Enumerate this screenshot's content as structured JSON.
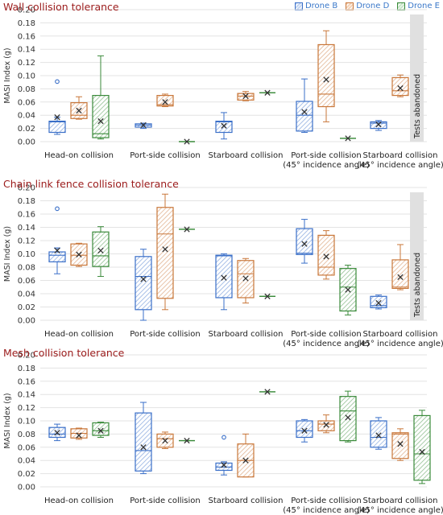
{
  "legend": {
    "drone_b": "Drone B",
    "drone_d": "Drone D",
    "drone_e": "Drone E"
  },
  "colors": {
    "drone_b": "#3a6fc8",
    "drone_d": "#c9773a",
    "drone_e": "#3a8a3a",
    "title": "#9b1b1b",
    "grid": "#e3e3e3",
    "abandoned_bar": "#e0e0e0"
  },
  "chart_data": [
    {
      "type": "box",
      "title": "Wall collision tolerance",
      "ylabel": "MASI Index (g)",
      "ylim": [
        0,
        0.2
      ],
      "yticks": [
        "0.00",
        "0.02",
        "0.04",
        "0.06",
        "0.08",
        "0.10",
        "0.12",
        "0.14",
        "0.16",
        "0.18",
        "0.20"
      ],
      "categories": [
        "Head-on collision",
        "Port-side collision",
        "Starboard collision",
        "Port-side collision\n(45° incidence angle)",
        "Starboard collision\n(45° incidence angle)"
      ],
      "abandoned_label": "Tests abandoned",
      "series": [
        {
          "name": "Drone B",
          "boxes": [
            {
              "min": 0.011,
              "q1": 0.014,
              "median": 0.03,
              "q3": 0.031,
              "max": 0.037,
              "mean": 0.037,
              "outliers": [
                0.091
              ]
            },
            {
              "min": 0.02,
              "q1": 0.022,
              "median": 0.025,
              "q3": 0.027,
              "max": 0.028,
              "mean": 0.025,
              "outliers": []
            },
            {
              "min": 0.004,
              "q1": 0.014,
              "median": 0.03,
              "q3": 0.031,
              "max": 0.044,
              "mean": 0.024,
              "outliers": []
            },
            {
              "min": 0.014,
              "q1": 0.016,
              "median": 0.04,
              "q3": 0.061,
              "max": 0.095,
              "mean": 0.045,
              "outliers": []
            },
            {
              "min": 0.017,
              "q1": 0.02,
              "median": 0.028,
              "q3": 0.03,
              "max": 0.032,
              "mean": 0.026,
              "outliers": []
            }
          ]
        },
        {
          "name": "Drone D",
          "boxes": [
            {
              "min": 0.034,
              "q1": 0.035,
              "median": 0.04,
              "q3": 0.059,
              "max": 0.068,
              "mean": 0.047,
              "outliers": []
            },
            {
              "min": 0.053,
              "q1": 0.054,
              "median": 0.056,
              "q3": 0.07,
              "max": 0.072,
              "mean": 0.06,
              "outliers": []
            },
            {
              "min": 0.062,
              "q1": 0.063,
              "median": 0.069,
              "q3": 0.073,
              "max": 0.076,
              "mean": 0.069,
              "outliers": []
            },
            {
              "min": 0.03,
              "q1": 0.053,
              "median": 0.072,
              "q3": 0.147,
              "max": 0.168,
              "mean": 0.094,
              "outliers": []
            },
            {
              "min": 0.068,
              "q1": 0.07,
              "median": 0.077,
              "q3": 0.097,
              "max": 0.101,
              "mean": 0.081,
              "outliers": []
            }
          ]
        },
        {
          "name": "Drone E",
          "boxes": [
            {
              "min": 0.004,
              "q1": 0.006,
              "median": 0.012,
              "q3": 0.07,
              "max": 0.13,
              "mean": 0.031,
              "outliers": []
            },
            {
              "min": 0.0,
              "q1": 0.0,
              "median": 0.0,
              "q3": 0.0,
              "max": 0.0,
              "mean": 0.0,
              "outliers": []
            },
            {
              "min": 0.074,
              "q1": 0.074,
              "median": 0.074,
              "q3": 0.074,
              "max": 0.074,
              "mean": 0.074,
              "outliers": []
            },
            {
              "min": 0.005,
              "q1": 0.005,
              "median": 0.005,
              "q3": 0.005,
              "max": 0.005,
              "mean": 0.005,
              "outliers": []
            },
            null
          ]
        }
      ]
    },
    {
      "type": "box",
      "title": "Chain link fence collision tolerance",
      "ylabel": "MASI Index (g)",
      "ylim": [
        0,
        0.2
      ],
      "yticks": [
        "0.00",
        "0.02",
        "0.04",
        "0.06",
        "0.08",
        "0.10",
        "0.12",
        "0.14",
        "0.16",
        "0.18",
        "0.20"
      ],
      "categories": [
        "Head-on collision",
        "Port-side collision",
        "Starboard collision",
        "Port-side collision\n(45° incidence angle)",
        "Starboard collision\n(45° incidence angle)"
      ],
      "abandoned_label": "Tests abandoned",
      "series": [
        {
          "name": "Drone B",
          "boxes": [
            {
              "min": 0.07,
              "q1": 0.088,
              "median": 0.098,
              "q3": 0.103,
              "max": 0.109,
              "mean": 0.105,
              "outliers": [
                0.168
              ]
            },
            {
              "min": 0.0,
              "q1": 0.016,
              "median": 0.066,
              "q3": 0.096,
              "max": 0.107,
              "mean": 0.062,
              "outliers": []
            },
            {
              "min": 0.016,
              "q1": 0.034,
              "median": 0.097,
              "q3": 0.098,
              "max": 0.1,
              "mean": 0.064,
              "outliers": []
            },
            {
              "min": 0.086,
              "q1": 0.099,
              "median": 0.101,
              "q3": 0.138,
              "max": 0.152,
              "mean": 0.115,
              "outliers": []
            },
            {
              "min": 0.017,
              "q1": 0.019,
              "median": 0.022,
              "q3": 0.036,
              "max": 0.038,
              "mean": 0.026,
              "outliers": []
            }
          ]
        },
        {
          "name": "Drone D",
          "boxes": [
            {
              "min": 0.081,
              "q1": 0.083,
              "median": 0.098,
              "q3": 0.115,
              "max": 0.116,
              "mean": 0.099,
              "outliers": []
            },
            {
              "min": 0.016,
              "q1": 0.033,
              "median": 0.13,
              "q3": 0.17,
              "max": 0.19,
              "mean": 0.107,
              "outliers": []
            },
            {
              "min": 0.026,
              "q1": 0.034,
              "median": 0.07,
              "q3": 0.09,
              "max": 0.093,
              "mean": 0.063,
              "outliers": []
            },
            {
              "min": 0.062,
              "q1": 0.068,
              "median": 0.08,
              "q3": 0.128,
              "max": 0.135,
              "mean": 0.096,
              "outliers": []
            },
            {
              "min": 0.046,
              "q1": 0.048,
              "median": 0.05,
              "q3": 0.091,
              "max": 0.114,
              "mean": 0.065,
              "outliers": []
            }
          ]
        },
        {
          "name": "Drone E",
          "boxes": [
            {
              "min": 0.066,
              "q1": 0.081,
              "median": 0.097,
              "q3": 0.133,
              "max": 0.141,
              "mean": 0.105,
              "outliers": []
            },
            {
              "min": 0.137,
              "q1": 0.137,
              "median": 0.137,
              "q3": 0.137,
              "max": 0.137,
              "mean": 0.137,
              "outliers": []
            },
            {
              "min": 0.036,
              "q1": 0.036,
              "median": 0.036,
              "q3": 0.036,
              "max": 0.036,
              "mean": 0.036,
              "outliers": []
            },
            {
              "min": 0.008,
              "q1": 0.014,
              "median": 0.05,
              "q3": 0.078,
              "max": 0.083,
              "mean": 0.046,
              "outliers": []
            },
            null
          ]
        }
      ]
    },
    {
      "type": "box",
      "title": "Mesh collision tolerance",
      "ylabel": "MASI Index (g)",
      "ylim": [
        0,
        0.2
      ],
      "yticks": [
        "0.00",
        "0.02",
        "0.04",
        "0.06",
        "0.08",
        "0.10",
        "0.12",
        "0.14",
        "0.16",
        "0.18",
        "0.20"
      ],
      "categories": [
        "Head-on collision",
        "Port-side collision",
        "Starboard collision",
        "Port-side collision\n(45° incidence angle)",
        "Starboard collision\n(45° incidence angle)"
      ],
      "abandoned_label": "",
      "series": [
        {
          "name": "Drone B",
          "boxes": [
            {
              "min": 0.07,
              "q1": 0.075,
              "median": 0.08,
              "q3": 0.09,
              "max": 0.095,
              "mean": 0.082,
              "outliers": []
            },
            {
              "min": 0.02,
              "q1": 0.024,
              "median": 0.055,
              "q3": 0.112,
              "max": 0.128,
              "mean": 0.06,
              "outliers": []
            },
            {
              "min": 0.018,
              "q1": 0.025,
              "median": 0.03,
              "q3": 0.036,
              "max": 0.038,
              "mean": 0.033,
              "outliers": [
                0.075
              ]
            },
            {
              "min": 0.068,
              "q1": 0.075,
              "median": 0.085,
              "q3": 0.1,
              "max": 0.102,
              "mean": 0.085,
              "outliers": []
            },
            {
              "min": 0.057,
              "q1": 0.06,
              "median": 0.075,
              "q3": 0.1,
              "max": 0.105,
              "mean": 0.078,
              "outliers": []
            }
          ]
        },
        {
          "name": "Drone D",
          "boxes": [
            {
              "min": 0.072,
              "q1": 0.074,
              "median": 0.081,
              "q3": 0.088,
              "max": 0.089,
              "mean": 0.078,
              "outliers": []
            },
            {
              "min": 0.058,
              "q1": 0.06,
              "median": 0.073,
              "q3": 0.08,
              "max": 0.083,
              "mean": 0.07,
              "outliers": []
            },
            {
              "min": 0.015,
              "q1": 0.015,
              "median": 0.04,
              "q3": 0.065,
              "max": 0.08,
              "mean": 0.04,
              "outliers": []
            },
            {
              "min": 0.082,
              "q1": 0.085,
              "median": 0.095,
              "q3": 0.1,
              "max": 0.109,
              "mean": 0.094,
              "outliers": []
            },
            {
              "min": 0.04,
              "q1": 0.043,
              "median": 0.08,
              "q3": 0.082,
              "max": 0.088,
              "mean": 0.065,
              "outliers": []
            }
          ]
        },
        {
          "name": "Drone E",
          "boxes": [
            {
              "min": 0.075,
              "q1": 0.078,
              "median": 0.085,
              "q3": 0.097,
              "max": 0.098,
              "mean": 0.085,
              "outliers": []
            },
            {
              "min": 0.07,
              "q1": 0.07,
              "median": 0.07,
              "q3": 0.07,
              "max": 0.07,
              "mean": 0.07,
              "outliers": []
            },
            {
              "min": 0.144,
              "q1": 0.144,
              "median": 0.144,
              "q3": 0.144,
              "max": 0.144,
              "mean": 0.144,
              "outliers": []
            },
            {
              "min": 0.068,
              "q1": 0.07,
              "median": 0.115,
              "q3": 0.137,
              "max": 0.145,
              "mean": 0.105,
              "outliers": []
            },
            {
              "min": 0.005,
              "q1": 0.01,
              "median": 0.05,
              "q3": 0.108,
              "max": 0.116,
              "mean": 0.053,
              "outliers": []
            }
          ]
        }
      ]
    }
  ]
}
